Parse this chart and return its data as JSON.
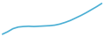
{
  "values": [
    14200,
    15100,
    16200,
    16800,
    17000,
    17100,
    17000,
    17100,
    17200,
    17300,
    17500,
    17900,
    18500,
    19200,
    20100,
    21000,
    22000,
    23100,
    24200,
    25400
  ],
  "line_color": "#4bafd4",
  "line_width": 1.2,
  "background_color": "#ffffff",
  "ylim_min": 13500,
  "ylim_max": 26500
}
